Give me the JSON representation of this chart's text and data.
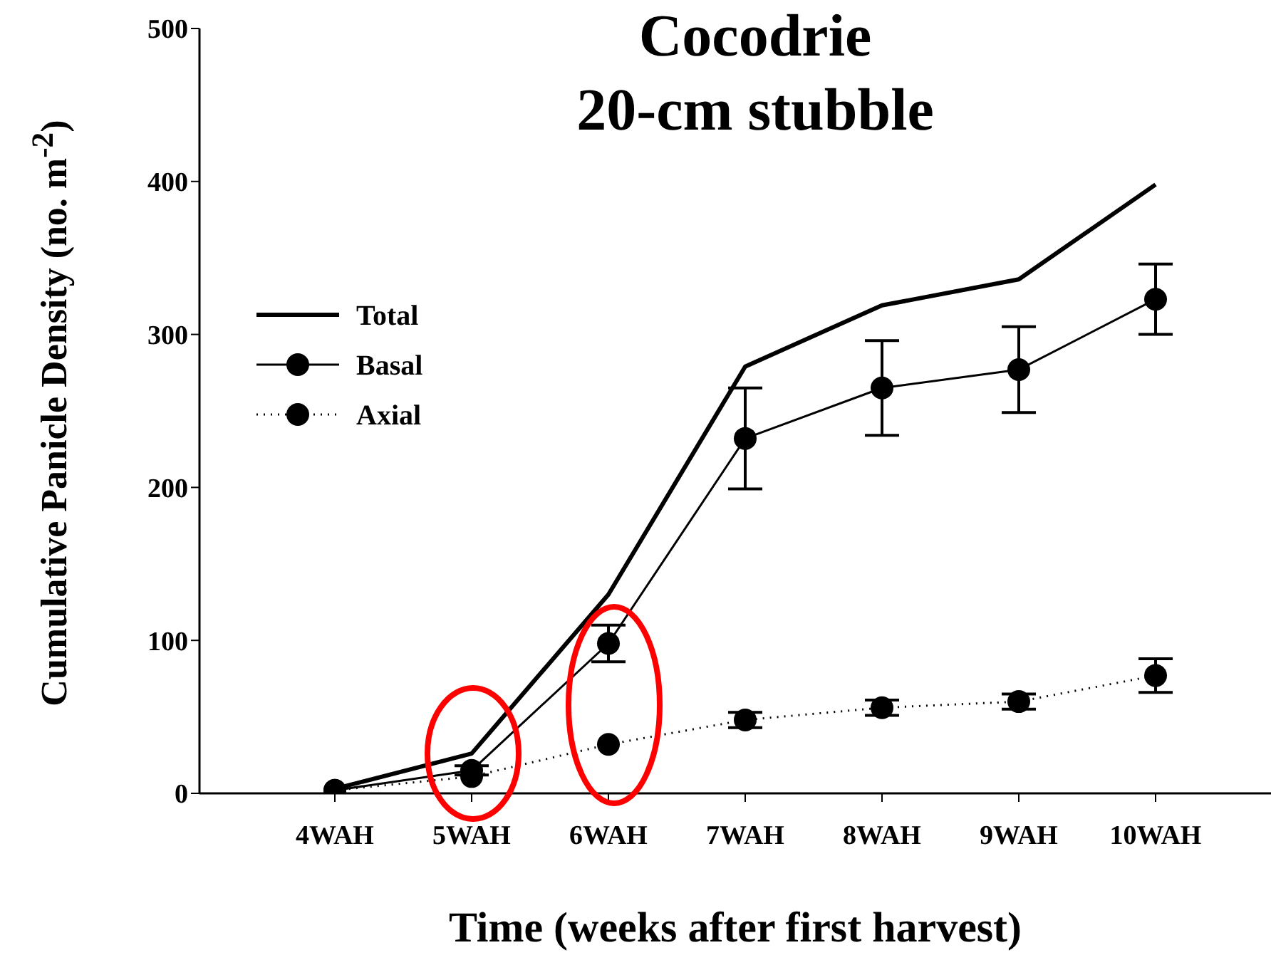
{
  "chart_data": {
    "type": "line",
    "title": "Cocodrie\n20-cm stubble",
    "xlabel": "Time (weeks after first harvest)",
    "ylabel": "Cumulative Panicle Density (no. m$^{-2}$)",
    "categories": [
      "4WAH",
      "5WAH",
      "6WAH",
      "7WAH",
      "8WAH",
      "9WAH",
      "10WAH"
    ],
    "ylim": [
      0,
      500
    ],
    "yticks": [
      0,
      100,
      200,
      300,
      400,
      500
    ],
    "grid": false,
    "legend": "top left",
    "series": [
      {
        "name": "Total",
        "color": "#000000",
        "marker": "none",
        "line_style": "solid",
        "values": [
          3,
          26,
          130,
          279,
          319,
          336,
          398
        ]
      },
      {
        "name": "Basal",
        "color": "#000000",
        "marker": "circle",
        "line_style": "solid",
        "values": [
          2,
          15,
          98,
          232,
          265,
          277,
          323
        ],
        "errors": [
          null,
          3,
          12,
          33,
          31,
          28,
          23
        ]
      },
      {
        "name": "Axial",
        "color": "#000000",
        "marker": "circle",
        "line_style": "dotted",
        "values": [
          2,
          11,
          32,
          48,
          56,
          60,
          77
        ],
        "errors": [
          null,
          null,
          null,
          5,
          5,
          5,
          11
        ]
      }
    ]
  }
}
